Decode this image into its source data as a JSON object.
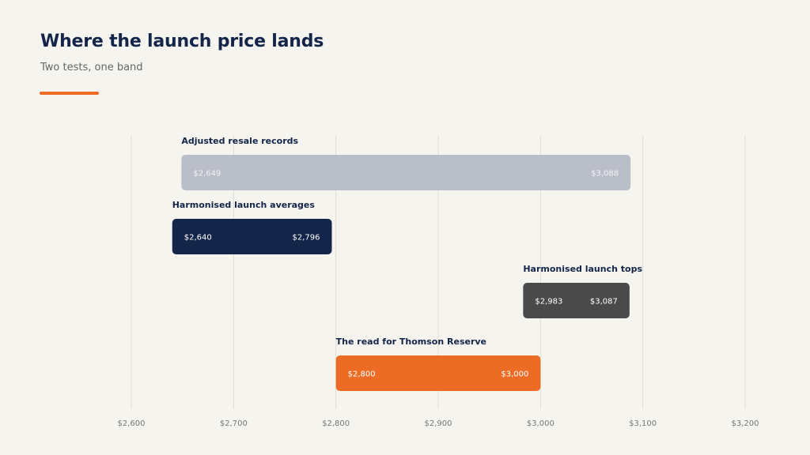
{
  "header": {
    "title": "Where the launch price lands",
    "subtitle": "Two tests, one band"
  },
  "colors": {
    "background": "#f5f4ee",
    "accent": "#ec6b25",
    "grid": "#dddcd4",
    "label_text": "#14254a",
    "tick_text": "#777777"
  },
  "chart_data": {
    "type": "bar",
    "orientation": "horizontal-range",
    "xlim": [
      2600,
      3200
    ],
    "xticks": [
      2600,
      2700,
      2800,
      2900,
      3000,
      3100,
      3200
    ],
    "xtick_labels": [
      "$2,600",
      "$2,700",
      "$2,800",
      "$2,900",
      "$3,000",
      "$3,100",
      "$3,200"
    ],
    "grid": "vertical",
    "series": [
      {
        "name": "Adjusted resale records",
        "low": 2649,
        "high": 3088,
        "low_label": "$2,649",
        "high_label": "$3,088",
        "color": "#b9bec9",
        "value_text_color": "#f2f3f5"
      },
      {
        "name": "Harmonised launch averages",
        "low": 2640,
        "high": 2796,
        "low_label": "$2,640",
        "high_label": "$2,796",
        "color": "#14254a",
        "value_text_color": "#ffffff"
      },
      {
        "name": "Harmonised launch tops",
        "low": 2983,
        "high": 3087,
        "low_label": "$2,983",
        "high_label": "$3,087",
        "color": "#4a4a4a",
        "value_text_color": "#ffffff"
      },
      {
        "name": "The read for Thomson Reserve",
        "low": 2800,
        "high": 3000,
        "low_label": "$2,800",
        "high_label": "$3,000",
        "color": "#ec6b25",
        "value_text_color": "#ffffff"
      }
    ]
  }
}
